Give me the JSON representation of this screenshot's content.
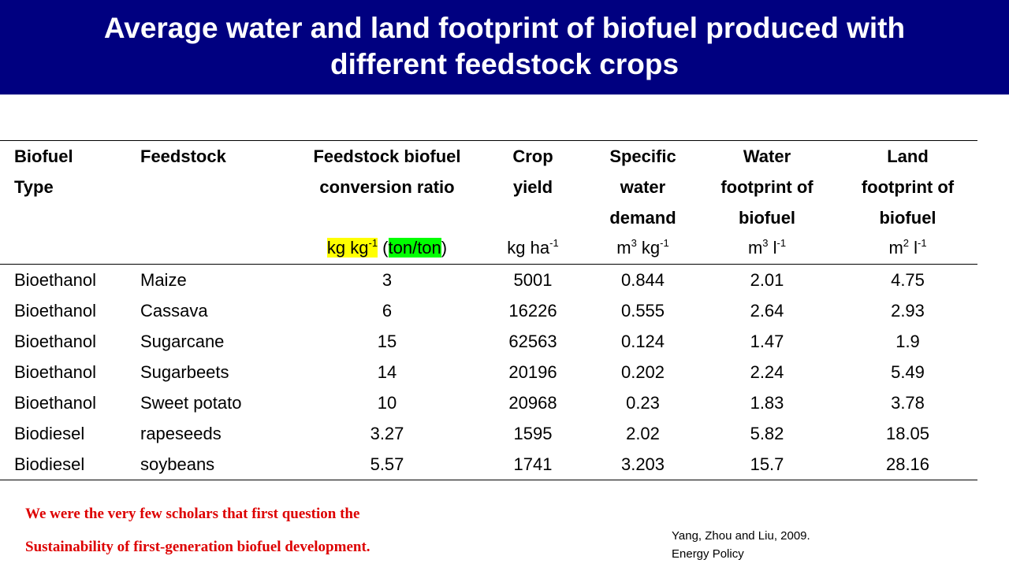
{
  "title": {
    "line1": "Average water and land footprint of biofuel produced with",
    "line2": "different feedstock crops"
  },
  "table": {
    "headers": {
      "biofuel_type": [
        "Biofuel",
        "Type"
      ],
      "feedstock": [
        "Feedstock"
      ],
      "conversion_ratio": [
        "Feedstock biofuel",
        "conversion ratio"
      ],
      "crop_yield": [
        "Crop",
        "yield"
      ],
      "specific_water_demand": [
        "Specific",
        "water",
        "demand"
      ],
      "water_footprint": [
        "Water",
        "footprint of",
        "biofuel"
      ],
      "land_footprint": [
        "Land",
        "footprint of",
        "biofuel"
      ]
    },
    "units": {
      "conversion_ratio": {
        "base": "kg kg",
        "exp": "-1",
        "open_paren": "(",
        "alt": "ton/ton",
        "close_paren": ")"
      },
      "crop_yield": {
        "base": "kg ha",
        "exp": "-1"
      },
      "specific_water_demand": {
        "base1": "m",
        "exp1": "3",
        "base2": " kg",
        "exp2": "-1"
      },
      "water_footprint": {
        "base1": "m",
        "exp1": "3",
        "base2": " l",
        "exp2": "-1"
      },
      "land_footprint": {
        "base1": "m",
        "exp1": "2",
        "base2": " l",
        "exp2": "-1"
      }
    },
    "rows": [
      {
        "type": "Bioethanol",
        "feedstock": "Maize",
        "ratio": "3",
        "yield": "5001",
        "water_demand": "0.844",
        "water_fp": "2.01",
        "land_fp": "4.75"
      },
      {
        "type": "Bioethanol",
        "feedstock": "Cassava",
        "ratio": "6",
        "yield": "16226",
        "water_demand": "0.555",
        "water_fp": "2.64",
        "land_fp": "2.93"
      },
      {
        "type": "Bioethanol",
        "feedstock": "Sugarcane",
        "ratio": "15",
        "yield": "62563",
        "water_demand": "0.124",
        "water_fp": "1.47",
        "land_fp": "1.9"
      },
      {
        "type": "Bioethanol",
        "feedstock": "Sugarbeets",
        "ratio": "14",
        "yield": "20196",
        "water_demand": "0.202",
        "water_fp": "2.24",
        "land_fp": "5.49"
      },
      {
        "type": "Bioethanol",
        "feedstock": "Sweet potato",
        "ratio": "10",
        "yield": "20968",
        "water_demand": "0.23",
        "water_fp": "1.83",
        "land_fp": "3.78"
      },
      {
        "type": "Biodiesel",
        "feedstock": "rapeseeds",
        "ratio": "3.27",
        "yield": "1595",
        "water_demand": "2.02",
        "water_fp": "5.82",
        "land_fp": "18.05"
      },
      {
        "type": "Biodiesel",
        "feedstock": "soybeans",
        "ratio": "5.57",
        "yield": "1741",
        "water_demand": "3.203",
        "water_fp": "15.7",
        "land_fp": "28.16"
      }
    ]
  },
  "note": {
    "line1": "We were the very few scholars that first question the",
    "line2": "Sustainability of first-generation biofuel development."
  },
  "citation": {
    "line1": "Yang, Zhou and Liu, 2009.",
    "line2": "Energy Policy"
  },
  "colors": {
    "title_bar": "#000080",
    "title_text": "#ffffff",
    "note_text": "#dd0000",
    "highlight_yellow": "#ffff00",
    "highlight_green": "#00ff00"
  }
}
